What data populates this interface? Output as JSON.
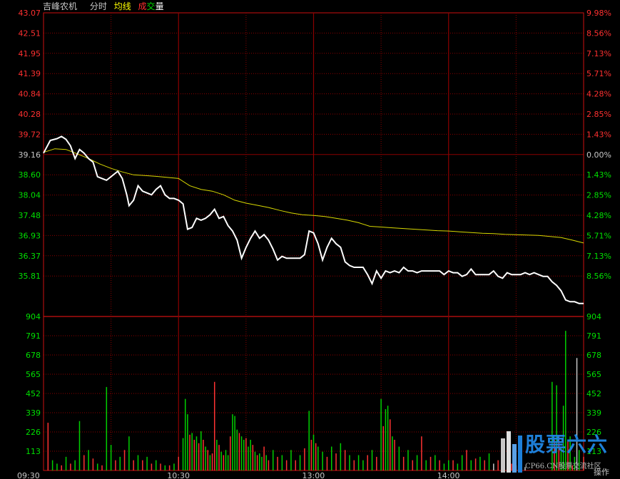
{
  "header": {
    "stock_name": "吉峰农机",
    "mode_label": "分时",
    "avg_legend": "均线",
    "vol_legend_a": "成",
    "vol_legend_b": "交",
    "vol_legend_c": "量"
  },
  "price_axis": {
    "left_labels": [
      "43.07",
      "42.51",
      "41.95",
      "41.39",
      "40.84",
      "40.28",
      "39.72",
      "39.16",
      "38.60",
      "38.04",
      "37.48",
      "36.93",
      "36.37",
      "35.81"
    ],
    "right_labels": [
      "9.98%",
      "8.56%",
      "7.13%",
      "5.71%",
      "4.28%",
      "2.85%",
      "1.43%",
      "0.00%",
      "1.43%",
      "2.85%",
      "4.28%",
      "5.71%",
      "7.13%",
      "8.56%"
    ],
    "prev_close": 39.16
  },
  "volume_axis": {
    "labels": [
      "904",
      "791",
      "678",
      "565",
      "452",
      "339",
      "226",
      "113"
    ]
  },
  "time_axis": {
    "labels": [
      "09:30",
      "10:30",
      "13:00",
      "14:00"
    ]
  },
  "corner_label": "操作",
  "watermark": {
    "text": "股票六六",
    "subtext": "CP66.CN股票交流社区"
  },
  "colors": {
    "grid": "#8b0000",
    "price_line": "#ffffff",
    "avg_line": "#d8d800",
    "up_volume": "#ff3232",
    "down_volume": "#00d000",
    "neutral_volume": "#c8c8c8",
    "axis_red": "#ff3030",
    "axis_green": "#00e000",
    "header_text": "#c8c8c8",
    "avg_text": "#ffff00",
    "vol_text_a": "#ff3030",
    "vol_text_b": "#00e000",
    "vol_text_c": "#ffffff"
  },
  "chart_data": {
    "type": "line",
    "x_range_minutes": [
      0,
      240
    ],
    "price": [
      [
        0,
        39.2
      ],
      [
        3,
        39.55
      ],
      [
        6,
        39.6
      ],
      [
        8,
        39.66
      ],
      [
        10,
        39.58
      ],
      [
        12,
        39.4
      ],
      [
        14,
        39.05
      ],
      [
        16,
        39.3
      ],
      [
        18,
        39.2
      ],
      [
        20,
        39.05
      ],
      [
        22,
        38.95
      ],
      [
        24,
        38.55
      ],
      [
        26,
        38.5
      ],
      [
        28,
        38.45
      ],
      [
        30,
        38.55
      ],
      [
        33,
        38.7
      ],
      [
        35,
        38.5
      ],
      [
        37,
        38.05
      ],
      [
        38,
        37.75
      ],
      [
        40,
        37.9
      ],
      [
        42,
        38.3
      ],
      [
        44,
        38.15
      ],
      [
        46,
        38.1
      ],
      [
        48,
        38.05
      ],
      [
        50,
        38.2
      ],
      [
        52,
        38.3
      ],
      [
        54,
        38.05
      ],
      [
        56,
        37.95
      ],
      [
        58,
        37.95
      ],
      [
        60,
        37.9
      ],
      [
        62,
        37.8
      ],
      [
        64,
        37.1
      ],
      [
        66,
        37.15
      ],
      [
        68,
        37.4
      ],
      [
        70,
        37.35
      ],
      [
        72,
        37.4
      ],
      [
        74,
        37.5
      ],
      [
        76,
        37.65
      ],
      [
        78,
        37.4
      ],
      [
        80,
        37.45
      ],
      [
        82,
        37.2
      ],
      [
        84,
        37.05
      ],
      [
        86,
        36.8
      ],
      [
        88,
        36.3
      ],
      [
        90,
        36.6
      ],
      [
        92,
        36.85
      ],
      [
        94,
        37.05
      ],
      [
        96,
        36.85
      ],
      [
        98,
        36.95
      ],
      [
        100,
        36.8
      ],
      [
        102,
        36.55
      ],
      [
        104,
        36.25
      ],
      [
        106,
        36.35
      ],
      [
        108,
        36.3
      ],
      [
        110,
        36.3
      ],
      [
        112,
        36.3
      ],
      [
        114,
        36.3
      ],
      [
        116,
        36.4
      ],
      [
        118,
        37.05
      ],
      [
        120,
        37.0
      ],
      [
        122,
        36.7
      ],
      [
        124,
        36.25
      ],
      [
        126,
        36.6
      ],
      [
        128,
        36.85
      ],
      [
        130,
        36.7
      ],
      [
        132,
        36.6
      ],
      [
        134,
        36.2
      ],
      [
        136,
        36.1
      ],
      [
        138,
        36.05
      ],
      [
        140,
        36.05
      ],
      [
        142,
        36.05
      ],
      [
        144,
        35.85
      ],
      [
        146,
        35.6
      ],
      [
        148,
        35.95
      ],
      [
        150,
        35.75
      ],
      [
        152,
        35.95
      ],
      [
        154,
        35.9
      ],
      [
        156,
        35.95
      ],
      [
        158,
        35.9
      ],
      [
        160,
        36.05
      ],
      [
        162,
        35.95
      ],
      [
        164,
        35.95
      ],
      [
        166,
        35.9
      ],
      [
        168,
        35.95
      ],
      [
        170,
        35.95
      ],
      [
        172,
        35.95
      ],
      [
        174,
        35.95
      ],
      [
        176,
        35.95
      ],
      [
        178,
        35.85
      ],
      [
        180,
        35.95
      ],
      [
        182,
        35.9
      ],
      [
        184,
        35.9
      ],
      [
        186,
        35.8
      ],
      [
        188,
        35.85
      ],
      [
        190,
        36.0
      ],
      [
        192,
        35.85
      ],
      [
        194,
        35.85
      ],
      [
        196,
        35.85
      ],
      [
        198,
        35.85
      ],
      [
        200,
        35.95
      ],
      [
        202,
        35.8
      ],
      [
        204,
        35.75
      ],
      [
        206,
        35.9
      ],
      [
        208,
        35.85
      ],
      [
        210,
        35.85
      ],
      [
        212,
        35.85
      ],
      [
        214,
        35.9
      ],
      [
        216,
        35.85
      ],
      [
        218,
        35.9
      ],
      [
        220,
        35.85
      ],
      [
        222,
        35.8
      ],
      [
        224,
        35.8
      ],
      [
        226,
        35.65
      ],
      [
        228,
        35.55
      ],
      [
        230,
        35.4
      ],
      [
        232,
        35.15
      ],
      [
        234,
        35.1
      ],
      [
        236,
        35.1
      ],
      [
        238,
        35.05
      ],
      [
        240,
        35.05
      ]
    ],
    "avg_price": [
      [
        0,
        39.22
      ],
      [
        5,
        39.32
      ],
      [
        10,
        39.3
      ],
      [
        15,
        39.18
      ],
      [
        20,
        39.05
      ],
      [
        25,
        38.9
      ],
      [
        30,
        38.78
      ],
      [
        35,
        38.68
      ],
      [
        40,
        38.6
      ],
      [
        45,
        38.58
      ],
      [
        50,
        38.56
      ],
      [
        55,
        38.53
      ],
      [
        60,
        38.5
      ],
      [
        65,
        38.3
      ],
      [
        70,
        38.2
      ],
      [
        75,
        38.15
      ],
      [
        80,
        38.05
      ],
      [
        85,
        37.9
      ],
      [
        90,
        37.82
      ],
      [
        95,
        37.76
      ],
      [
        100,
        37.7
      ],
      [
        105,
        37.62
      ],
      [
        110,
        37.55
      ],
      [
        115,
        37.5
      ],
      [
        120,
        37.48
      ],
      [
        125,
        37.45
      ],
      [
        130,
        37.4
      ],
      [
        135,
        37.35
      ],
      [
        140,
        37.28
      ],
      [
        145,
        37.18
      ],
      [
        150,
        37.16
      ],
      [
        155,
        37.14
      ],
      [
        160,
        37.12
      ],
      [
        165,
        37.1
      ],
      [
        170,
        37.08
      ],
      [
        175,
        37.06
      ],
      [
        180,
        37.05
      ],
      [
        185,
        37.03
      ],
      [
        190,
        37.01
      ],
      [
        195,
        36.99
      ],
      [
        200,
        36.98
      ],
      [
        205,
        36.96
      ],
      [
        210,
        36.95
      ],
      [
        215,
        36.94
      ],
      [
        220,
        36.93
      ],
      [
        225,
        36.9
      ],
      [
        230,
        36.87
      ],
      [
        235,
        36.8
      ],
      [
        240,
        36.72
      ]
    ],
    "volume_range": [
      0,
      904
    ],
    "volume": [
      [
        2,
        280,
        "up"
      ],
      [
        4,
        60,
        "down"
      ],
      [
        6,
        40,
        "down"
      ],
      [
        8,
        30,
        "up"
      ],
      [
        10,
        80,
        "down"
      ],
      [
        12,
        40,
        "up"
      ],
      [
        14,
        60,
        "down"
      ],
      [
        16,
        290,
        "down"
      ],
      [
        18,
        90,
        "up"
      ],
      [
        20,
        120,
        "down"
      ],
      [
        22,
        70,
        "up"
      ],
      [
        24,
        40,
        "down"
      ],
      [
        26,
        30,
        "up"
      ],
      [
        28,
        490,
        "down"
      ],
      [
        30,
        150,
        "down"
      ],
      [
        32,
        60,
        "up"
      ],
      [
        34,
        80,
        "down"
      ],
      [
        36,
        120,
        "up"
      ],
      [
        38,
        200,
        "down"
      ],
      [
        40,
        60,
        "up"
      ],
      [
        42,
        90,
        "down"
      ],
      [
        44,
        60,
        "up"
      ],
      [
        46,
        80,
        "down"
      ],
      [
        48,
        40,
        "up"
      ],
      [
        50,
        60,
        "down"
      ],
      [
        52,
        40,
        "up"
      ],
      [
        54,
        30,
        "down"
      ],
      [
        56,
        30,
        "up"
      ],
      [
        58,
        40,
        "down"
      ],
      [
        60,
        80,
        "up"
      ],
      [
        62,
        190,
        "down"
      ],
      [
        63,
        420,
        "down"
      ],
      [
        64,
        330,
        "down"
      ],
      [
        65,
        210,
        "up"
      ],
      [
        66,
        220,
        "down"
      ],
      [
        67,
        180,
        "up"
      ],
      [
        68,
        200,
        "down"
      ],
      [
        69,
        160,
        "up"
      ],
      [
        70,
        230,
        "down"
      ],
      [
        71,
        180,
        "up"
      ],
      [
        72,
        140,
        "down"
      ],
      [
        73,
        120,
        "up"
      ],
      [
        74,
        90,
        "down"
      ],
      [
        75,
        100,
        "up"
      ],
      [
        76,
        520,
        "up"
      ],
      [
        77,
        180,
        "down"
      ],
      [
        78,
        150,
        "up"
      ],
      [
        79,
        110,
        "down"
      ],
      [
        80,
        90,
        "up"
      ],
      [
        81,
        120,
        "down"
      ],
      [
        82,
        90,
        "down"
      ],
      [
        83,
        200,
        "up"
      ],
      [
        84,
        330,
        "down"
      ],
      [
        85,
        320,
        "down"
      ],
      [
        86,
        240,
        "down"
      ],
      [
        87,
        220,
        "up"
      ],
      [
        88,
        200,
        "down"
      ],
      [
        89,
        180,
        "down"
      ],
      [
        90,
        190,
        "up"
      ],
      [
        91,
        140,
        "down"
      ],
      [
        92,
        180,
        "down"
      ],
      [
        93,
        150,
        "up"
      ],
      [
        94,
        110,
        "down"
      ],
      [
        95,
        90,
        "up"
      ],
      [
        96,
        100,
        "down"
      ],
      [
        97,
        80,
        "down"
      ],
      [
        98,
        140,
        "up"
      ],
      [
        99,
        90,
        "down"
      ],
      [
        100,
        60,
        "up"
      ],
      [
        102,
        120,
        "down"
      ],
      [
        104,
        80,
        "up"
      ],
      [
        106,
        90,
        "down"
      ],
      [
        108,
        60,
        "up"
      ],
      [
        110,
        120,
        "down"
      ],
      [
        112,
        60,
        "up"
      ],
      [
        114,
        90,
        "down"
      ],
      [
        116,
        130,
        "up"
      ],
      [
        118,
        350,
        "down"
      ],
      [
        119,
        180,
        "up"
      ],
      [
        120,
        210,
        "down"
      ],
      [
        121,
        160,
        "up"
      ],
      [
        122,
        140,
        "down"
      ],
      [
        124,
        110,
        "down"
      ],
      [
        126,
        80,
        "up"
      ],
      [
        128,
        140,
        "down"
      ],
      [
        130,
        100,
        "up"
      ],
      [
        132,
        160,
        "down"
      ],
      [
        134,
        120,
        "up"
      ],
      [
        136,
        90,
        "down"
      ],
      [
        138,
        60,
        "up"
      ],
      [
        140,
        90,
        "down"
      ],
      [
        142,
        60,
        "down"
      ],
      [
        144,
        90,
        "up"
      ],
      [
        146,
        120,
        "down"
      ],
      [
        148,
        80,
        "up"
      ],
      [
        150,
        420,
        "down"
      ],
      [
        151,
        260,
        "up"
      ],
      [
        152,
        360,
        "down"
      ],
      [
        153,
        380,
        "down"
      ],
      [
        154,
        300,
        "up"
      ],
      [
        155,
        200,
        "down"
      ],
      [
        156,
        180,
        "up"
      ],
      [
        158,
        140,
        "down"
      ],
      [
        160,
        80,
        "up"
      ],
      [
        162,
        120,
        "down"
      ],
      [
        164,
        60,
        "up"
      ],
      [
        166,
        90,
        "down"
      ],
      [
        168,
        200,
        "up"
      ],
      [
        170,
        60,
        "down"
      ],
      [
        172,
        80,
        "up"
      ],
      [
        174,
        90,
        "down"
      ],
      [
        176,
        60,
        "up"
      ],
      [
        178,
        40,
        "down"
      ],
      [
        180,
        60,
        "down"
      ],
      [
        182,
        60,
        "up"
      ],
      [
        184,
        40,
        "down"
      ],
      [
        186,
        90,
        "down"
      ],
      [
        188,
        120,
        "up"
      ],
      [
        190,
        60,
        "down"
      ],
      [
        192,
        70,
        "up"
      ],
      [
        194,
        80,
        "down"
      ],
      [
        196,
        60,
        "up"
      ],
      [
        198,
        100,
        "down"
      ],
      [
        200,
        40,
        "neutral"
      ],
      [
        202,
        60,
        "up"
      ],
      [
        204,
        40,
        "down"
      ],
      [
        206,
        40,
        "neutral"
      ],
      [
        208,
        40,
        "up"
      ],
      [
        210,
        30,
        "neutral"
      ],
      [
        212,
        30,
        "up"
      ],
      [
        214,
        20,
        "neutral"
      ],
      [
        226,
        520,
        "down"
      ],
      [
        227,
        180,
        "up"
      ],
      [
        228,
        500,
        "down"
      ],
      [
        229,
        200,
        "up"
      ],
      [
        230,
        130,
        "down"
      ],
      [
        231,
        380,
        "down"
      ],
      [
        232,
        820,
        "down"
      ],
      [
        233,
        180,
        "up"
      ],
      [
        234,
        200,
        "down"
      ],
      [
        235,
        30,
        "up"
      ],
      [
        236,
        80,
        "down"
      ],
      [
        237,
        660,
        "neutral"
      ],
      [
        238,
        120,
        "down"
      ],
      [
        240,
        80,
        "up"
      ]
    ]
  }
}
